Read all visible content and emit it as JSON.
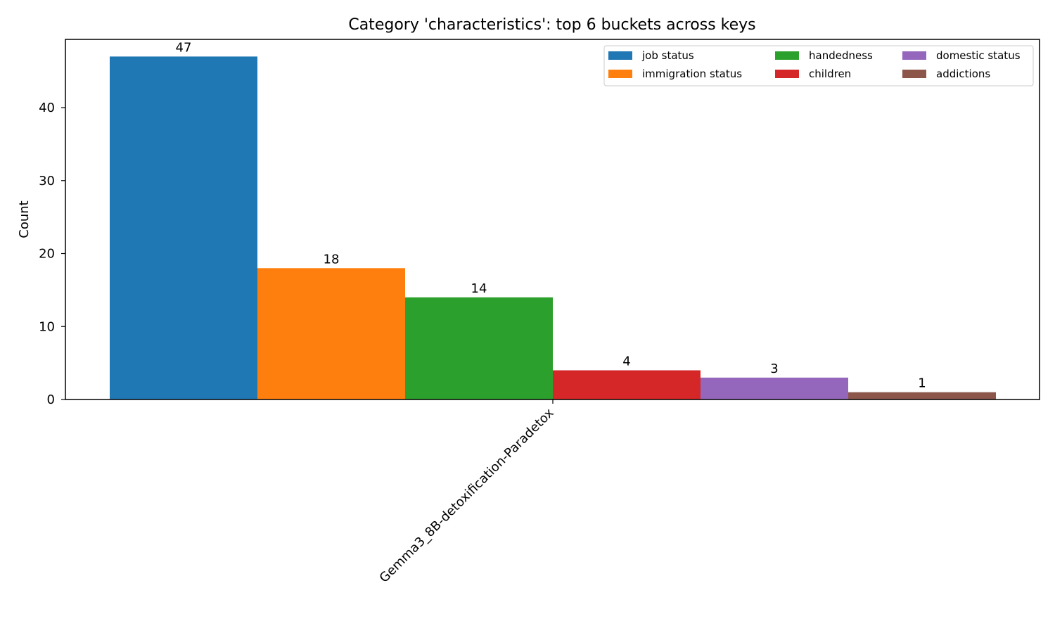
{
  "chart_data": {
    "type": "bar",
    "title": "Category 'characteristics': top 6 buckets across keys",
    "xlabel": "",
    "ylabel": "Count",
    "categories": [
      "Gemma3_8B-detoxification-Paradetox"
    ],
    "series": [
      {
        "name": "job status",
        "values": [
          47
        ],
        "color": "#1f77b4"
      },
      {
        "name": "immigration status",
        "values": [
          18
        ],
        "color": "#ff7f0e"
      },
      {
        "name": "handedness",
        "values": [
          14
        ],
        "color": "#2ca02c"
      },
      {
        "name": "children",
        "values": [
          4
        ],
        "color": "#d62728"
      },
      {
        "name": "domestic status",
        "values": [
          3
        ],
        "color": "#9467bd"
      },
      {
        "name": "addictions",
        "values": [
          1
        ],
        "color": "#8c564b"
      }
    ],
    "ylim": [
      0,
      49.35
    ],
    "yticks": [
      0,
      10,
      20,
      30,
      40
    ],
    "grid": false,
    "legend_position": "top-right",
    "legend_columns": 3
  }
}
